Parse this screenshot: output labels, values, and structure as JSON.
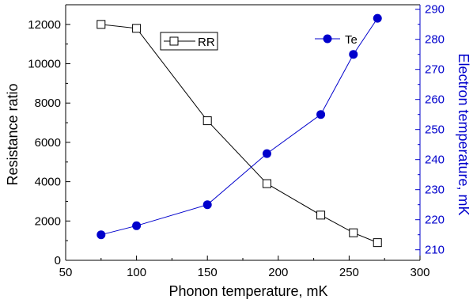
{
  "chart_data": {
    "type": "line",
    "x": [
      75,
      100,
      150,
      192,
      230,
      253,
      270
    ],
    "xlabel": "Phonon temperature, mK",
    "xlim": [
      50,
      300
    ],
    "x_ticks": [
      50,
      100,
      150,
      200,
      250,
      300
    ],
    "ylabel": "Resistance ratio",
    "ylim": [
      0,
      13000
    ],
    "y_ticks": [
      0,
      2000,
      4000,
      6000,
      8000,
      10000,
      12000
    ],
    "y2label": "Electron temperature, mK",
    "y2lim": [
      206.5,
      291.5
    ],
    "y2_ticks": [
      210,
      220,
      230,
      240,
      250,
      260,
      270,
      280,
      290
    ],
    "grid": false,
    "series": [
      {
        "name": "RR",
        "axis": "left",
        "color": "#000000",
        "marker": "open-square",
        "values": [
          12000,
          11800,
          7100,
          3900,
          2300,
          1400,
          900
        ]
      },
      {
        "name": "Te",
        "axis": "right",
        "color": "#0000cc",
        "marker": "filled-circle",
        "values": [
          215,
          218,
          225,
          242,
          255,
          275,
          287
        ]
      }
    ],
    "axis_colors": {
      "left": "#000000",
      "right": "#0000cc"
    }
  }
}
